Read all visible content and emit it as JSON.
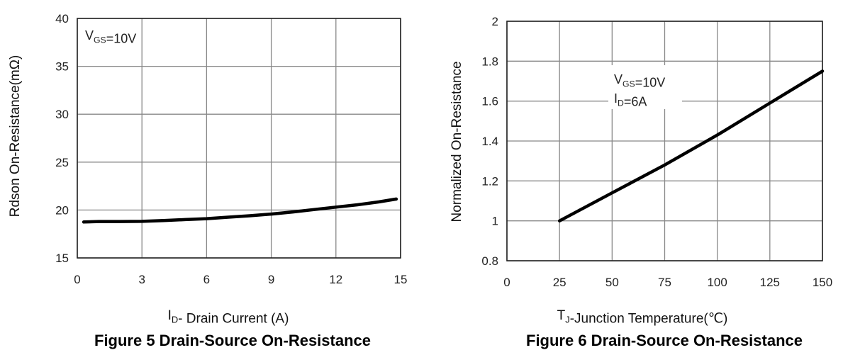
{
  "chart_data": [
    {
      "type": "line",
      "title": "Figure 5 Drain-Source On-Resistance",
      "xlabel": "I_D- Drain Current (A)",
      "ylabel": "Rdson On-Resistance(mΩ)",
      "xlim": [
        0,
        15
      ],
      "ylim": [
        15,
        40
      ],
      "xticks": [
        "0",
        "3",
        "6",
        "9",
        "12",
        "15"
      ],
      "yticks": [
        "15",
        "20",
        "25",
        "30",
        "35",
        "40"
      ],
      "grid": true,
      "annotation": "V_GS=10V",
      "series": [
        {
          "x": [
            0.3,
            1,
            2,
            3,
            4,
            5,
            6,
            7,
            8,
            9,
            10,
            11,
            12,
            13,
            14,
            14.8
          ],
          "values": [
            18.75,
            18.8,
            18.8,
            18.82,
            18.9,
            19.0,
            19.1,
            19.25,
            19.4,
            19.58,
            19.8,
            20.05,
            20.3,
            20.55,
            20.85,
            21.15
          ]
        }
      ]
    },
    {
      "type": "line",
      "title": "Figure 6 Drain-Source On-Resistance",
      "xlabel": "T_J-Junction Temperature(℃)",
      "ylabel": "Normalized On-Resistance",
      "xlim": [
        0,
        150
      ],
      "ylim": [
        0.8,
        2
      ],
      "xticks": [
        "0",
        "25",
        "50",
        "75",
        "100",
        "125",
        "150"
      ],
      "yticks": [
        "0.8",
        "1",
        "1.2",
        "1.4",
        "1.6",
        "1.8",
        "2"
      ],
      "grid": true,
      "annotation": [
        "V_GS=10V",
        "I_D=6A"
      ],
      "series": [
        {
          "x": [
            25,
            50,
            75,
            100,
            125,
            150
          ],
          "values": [
            1.0,
            1.14,
            1.28,
            1.43,
            1.59,
            1.75
          ]
        }
      ]
    }
  ]
}
